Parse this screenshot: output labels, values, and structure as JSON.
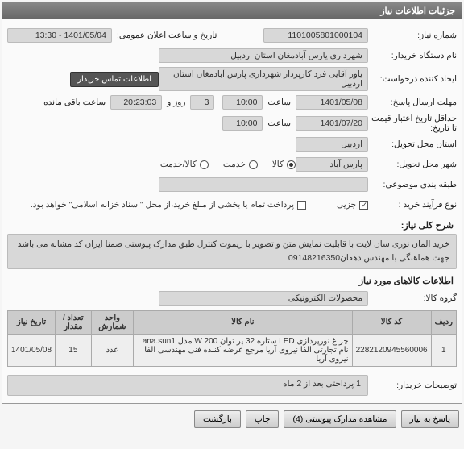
{
  "panel": {
    "title": "جزئیات اطلاعات نیاز"
  },
  "labels": {
    "need_no": "شماره نیاز:",
    "org": "نام دستگاه خریدار:",
    "requester": "ایجاد کننده درخواست:",
    "deadline": "مهلت ارسال پاسخ:",
    "price_validity_until": "حداقل تاریخ اعتبار قیمت تا تاریخ:",
    "req_location": "استان محل تحویل:",
    "del_city": "شهر محل تحویل:",
    "classification": "طبقه بندی موضوعی:",
    "process_type": "نوع فرآیند خرید :",
    "announce_dt": "تاریخ و ساعت اعلان عمومی:",
    "hour": "ساعت",
    "day_and": "روز و",
    "remaining": "ساعت باقی مانده",
    "goods": "کالا",
    "service": "خدمت",
    "goods_service": "کالا/خدمت",
    "partial": "جزیی",
    "payment_note": "پرداخت تمام یا بخشی از مبلغ خرید،از محل \"اسناد خزانه اسلامی\" خواهد بود.",
    "need_desc_title": "شرح کلی نیاز:",
    "items_title": "اطلاعات کالاهای مورد نیاز",
    "product_group": "گروه کالا:",
    "buyer_notes": "توضیحات خریدار:",
    "contact_btn": "اطلاعات تماس خریدار"
  },
  "fields": {
    "need_no": "1101005801000104",
    "org": "شهرداری پارس آبادمغان استان اردبیل",
    "requester": "یاور آقایی فرد کارپرداز شهرداری پارس آبادمغان استان اردبیل",
    "deadline_date": "1401/05/08",
    "deadline_time": "10:00",
    "days": "3",
    "countdown": "20:23:03",
    "validity_date": "1401/07/20",
    "validity_time": "10:00",
    "province": "اردبیل",
    "city": "پارس آباد",
    "announce_dt": "1401/05/04 - 13:30",
    "product_group": "محصولات الکترونیکی",
    "buyer_notes": "1 پرداختی بعد از 2 ماه"
  },
  "need_description": "خرید المان نوری سان لایت با قابلیت نمایش متن و تصویر با ریموت کنترل طبق مدارک پیوستی ضمنا ایران کد مشابه می باشد جهت هماهنگی با مهندس دهقان09148216350",
  "table": {
    "columns": [
      "ردیف",
      "کد کالا",
      "نام کالا",
      "واحد شمارش",
      "تعداد / مقدار",
      "تاریخ نیاز"
    ],
    "rows": [
      [
        "1",
        "2282120945560006",
        "چراغ نورپردازی LED ستاره 32 پر توان W 200 مدل ana.sun1 نام تجارتی الفا نیروی آریا مرجع عرضه کننده فنی مهندسی الفا نیروی آریا",
        "عدد",
        "15",
        "1401/05/08"
      ]
    ]
  },
  "footer": {
    "reply": "پاسخ به نیاز",
    "attachments": "مشاهده مدارک پیوستی (4)",
    "print": "چاپ",
    "back": "بازگشت"
  },
  "colors": {
    "header_bg": "#777",
    "field_bg": "#d8d8d8",
    "border": "#aaa"
  }
}
